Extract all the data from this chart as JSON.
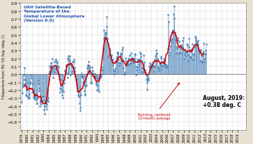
{
  "title_line1": "UAH Satellite-Based",
  "title_line2": "Temperature of the",
  "title_line3": "Global Lower Atmosphere",
  "title_line4": "(Version 6.0)",
  "ylabel": "T Departure from '81-'10 Avg. (deg. C)",
  "annotation_text": "August, 2019:\n+0.38 deg. C",
  "running_avg_label": "Running, centered\n13-month average",
  "ylim": [
    -0.7,
    0.9
  ],
  "ytick_major": [
    -0.6,
    -0.5,
    -0.4,
    -0.3,
    -0.2,
    -0.1,
    0.0,
    0.1,
    0.2,
    0.3,
    0.4,
    0.5,
    0.6,
    0.7,
    0.8,
    0.9
  ],
  "bg_color": "#e8e0d0",
  "plot_bg": "#ffffff",
  "monthly_color": "#5588bb",
  "running_color": "#cc0000",
  "title_color": "#2255aa",
  "monthly_data": [
    -0.35,
    -0.24,
    -0.16,
    -0.13,
    -0.01,
    0.08,
    -0.07,
    -0.07,
    -0.11,
    -0.26,
    -0.2,
    -0.27,
    -0.16,
    -0.1,
    -0.29,
    -0.31,
    -0.29,
    -0.25,
    -0.12,
    -0.1,
    -0.01,
    -0.04,
    -0.18,
    -0.23,
    -0.21,
    -0.12,
    -0.29,
    -0.25,
    -0.31,
    -0.28,
    -0.32,
    -0.25,
    -0.31,
    -0.37,
    -0.37,
    -0.3,
    -0.08,
    -0.12,
    -0.17,
    -0.21,
    -0.4,
    -0.33,
    -0.35,
    -0.38,
    -0.34,
    -0.33,
    -0.28,
    -0.32,
    -0.28,
    -0.45,
    -0.5,
    -0.4,
    -0.34,
    -0.36,
    -0.4,
    -0.44,
    -0.38,
    -0.32,
    -0.3,
    -0.34,
    0.01,
    0.04,
    0.1,
    0.11,
    0.11,
    0.14,
    0.09,
    0.07,
    0.2,
    0.05,
    -0.04,
    0.08,
    0.16,
    0.03,
    0.07,
    0.19,
    0.18,
    0.11,
    0.16,
    0.14,
    0.11,
    0.09,
    0.01,
    -0.06,
    -0.23,
    -0.17,
    0.0,
    -0.07,
    -0.19,
    -0.26,
    -0.21,
    -0.3,
    -0.22,
    -0.08,
    -0.11,
    0.05,
    0.05,
    0.04,
    0.12,
    0.1,
    0.01,
    -0.04,
    0.2,
    0.21,
    0.23,
    0.18,
    0.23,
    0.18,
    -0.01,
    0.12,
    0.13,
    0.04,
    0.16,
    0.09,
    0.09,
    0.16,
    0.19,
    0.08,
    0.04,
    -0.02,
    -0.07,
    -0.06,
    -0.12,
    -0.21,
    -0.17,
    -0.26,
    -0.22,
    -0.28,
    -0.37,
    -0.42,
    -0.46,
    -0.26,
    -0.02,
    0.01,
    -0.04,
    -0.02,
    -0.09,
    -0.12,
    -0.13,
    -0.21,
    -0.26,
    -0.25,
    -0.15,
    -0.14,
    0.0,
    0.08,
    0.11,
    0.12,
    0.16,
    0.11,
    0.09,
    0.08,
    0.04,
    -0.1,
    -0.1,
    -0.11,
    0.09,
    0.05,
    0.01,
    0.0,
    -0.05,
    0.01,
    -0.02,
    -0.03,
    0.0,
    -0.11,
    -0.13,
    -0.2,
    -0.05,
    -0.15,
    -0.19,
    -0.22,
    -0.07,
    -0.01,
    0.06,
    -0.04,
    -0.02,
    0.0,
    0.09,
    0.06,
    0.3,
    0.33,
    0.56,
    0.45,
    0.47,
    0.51,
    0.52,
    0.53,
    0.73,
    0.6,
    0.45,
    0.22,
    0.38,
    0.25,
    0.28,
    0.33,
    0.26,
    0.3,
    0.22,
    0.24,
    0.18,
    0.15,
    0.12,
    0.19,
    0.06,
    0.04,
    0.0,
    0.07,
    0.14,
    0.17,
    0.21,
    0.28,
    0.22,
    0.26,
    0.28,
    0.19,
    0.14,
    0.11,
    0.14,
    0.24,
    0.27,
    0.26,
    0.2,
    0.31,
    0.34,
    0.17,
    0.08,
    0.0,
    0.03,
    0.0,
    0.12,
    0.21,
    0.17,
    0.15,
    0.11,
    0.14,
    0.2,
    0.13,
    0.12,
    0.2,
    0.24,
    0.14,
    0.18,
    0.27,
    0.17,
    0.19,
    0.21,
    0.14,
    0.18,
    0.2,
    0.19,
    0.26,
    0.25,
    0.1,
    -0.01,
    0.06,
    0.09,
    0.19,
    0.17,
    0.19,
    0.13,
    0.16,
    0.19,
    0.28,
    0.22,
    0.26,
    0.17,
    0.08,
    0.03,
    0.07,
    0.24,
    0.12,
    0.15,
    0.06,
    0.05,
    0.02,
    -0.01,
    -0.07,
    -0.1,
    -0.19,
    -0.06,
    -0.05,
    -0.08,
    0.1,
    0.1,
    0.14,
    0.13,
    0.09,
    0.11,
    0.11,
    0.12,
    0.15,
    0.1,
    0.04,
    0.1,
    0.1,
    0.19,
    0.23,
    0.3,
    0.26,
    0.27,
    0.2,
    0.18,
    0.09,
    0.05,
    0.07,
    0.12,
    0.15,
    0.14,
    0.22,
    0.21,
    0.11,
    0.15,
    0.11,
    0.15,
    0.17,
    0.2,
    0.17,
    0.13,
    0.1,
    0.13,
    0.1,
    0.08,
    0.11,
    0.33,
    0.75,
    0.67,
    0.32,
    0.24,
    0.28,
    0.36,
    0.44,
    0.52,
    0.42,
    0.45,
    0.56,
    0.54,
    0.76,
    0.86,
    0.71,
    0.53,
    0.5,
    0.44,
    0.35,
    0.27,
    0.33,
    0.44,
    0.46,
    0.27,
    0.42,
    0.35,
    0.28,
    0.32,
    0.35,
    0.37,
    0.35,
    0.27,
    0.34,
    0.43,
    0.46,
    0.3,
    0.2,
    0.25,
    0.28,
    0.28,
    0.23,
    0.28,
    0.38,
    0.37,
    0.25,
    0.17,
    0.35,
    0.45,
    0.3,
    0.21,
    0.22,
    0.3,
    0.32,
    0.3,
    0.38,
    0.25,
    0.19,
    0.26,
    0.35,
    0.37,
    0.48,
    0.44,
    0.46,
    0.38,
    0.41,
    0.4,
    0.43,
    0.37,
    0.3,
    0.29,
    0.27,
    0.17,
    0.3,
    0.31,
    0.17,
    0.23,
    0.15,
    0.28,
    0.39,
    0.29,
    0.16,
    0.2,
    0.26,
    0.26,
    0.3,
    0.38
  ]
}
